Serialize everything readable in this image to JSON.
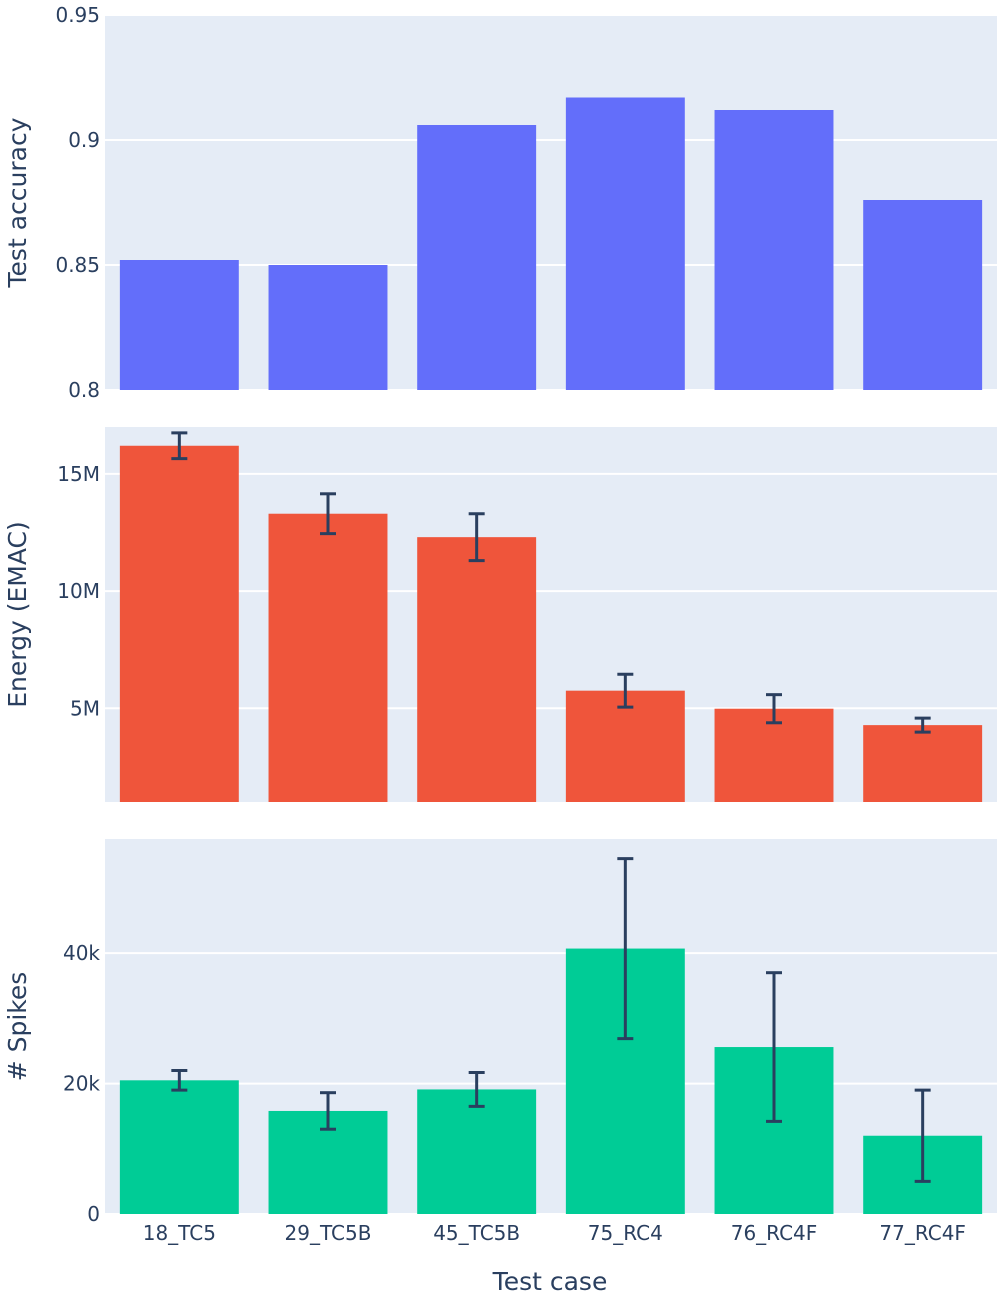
{
  "chart_data": [
    {
      "type": "bar",
      "name": "accuracy",
      "ylabel": "Test accuracy",
      "ylim": [
        0.8,
        0.95
      ],
      "yticks": [
        0.8,
        0.85,
        0.9,
        0.95
      ],
      "ytick_labels": [
        "0.8",
        "0.85",
        "0.9",
        "0.95"
      ],
      "color": "#636efa",
      "categories": [
        "18_TC5",
        "29_TC5B",
        "45_TC5B",
        "75_RC4",
        "76_RC4F",
        "77_RC4F"
      ],
      "values": [
        0.852,
        0.85,
        0.906,
        0.917,
        0.912,
        0.876
      ]
    },
    {
      "type": "bar",
      "name": "energy",
      "ylabel": "Energy (EMAC)",
      "ylim": [
        1000000,
        17000000
      ],
      "yticks": [
        5000000,
        10000000,
        15000000
      ],
      "ytick_labels": [
        "5M",
        "10M",
        "15M"
      ],
      "color": "#ef553b",
      "categories": [
        "18_TC5",
        "29_TC5B",
        "45_TC5B",
        "75_RC4",
        "76_RC4F",
        "77_RC4F"
      ],
      "values": [
        16200000,
        13300000,
        12300000,
        5750000,
        4980000,
        4280000
      ],
      "errors": [
        550000,
        850000,
        1000000,
        700000,
        600000,
        300000
      ]
    },
    {
      "type": "bar",
      "name": "spikes",
      "ylabel": "# Spikes",
      "ylim": [
        0,
        57500
      ],
      "yticks": [
        0,
        20000,
        40000
      ],
      "ytick_labels": [
        "0",
        "20k",
        "40k"
      ],
      "color": "#00cc96",
      "categories": [
        "18_TC5",
        "29_TC5B",
        "45_TC5B",
        "75_RC4",
        "76_RC4F",
        "77_RC4F"
      ],
      "values": [
        20500,
        15800,
        19100,
        40700,
        25600,
        12000
      ],
      "errors": [
        1500,
        2800,
        2600,
        13800,
        11400,
        7000
      ]
    }
  ],
  "xaxis": {
    "label": "Test case",
    "tick_labels": [
      "18_TC5",
      "29_TC5B",
      "45_TC5B",
      "75_RC4",
      "76_RC4F",
      "77_RC4F"
    ]
  },
  "colors": {
    "plot_bg": "#e5ecf6",
    "grid": "#ffffff",
    "text": "#2a3f5f",
    "error_bar": "#2a3f5f"
  }
}
